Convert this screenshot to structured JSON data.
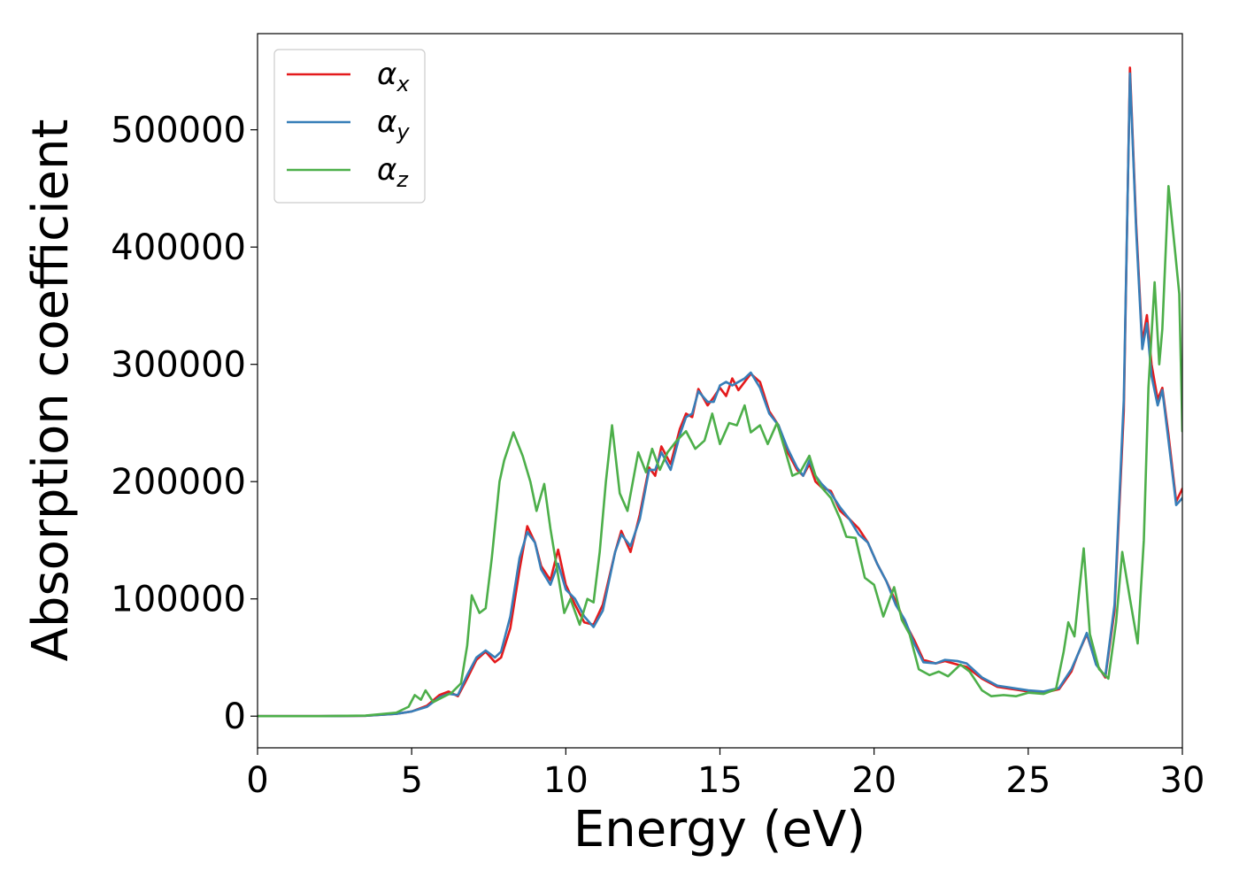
{
  "chart_data": {
    "type": "line",
    "xlabel": "Energy (eV)",
    "ylabel": "Absorption coefficient",
    "xlim": [
      0,
      30
    ],
    "ylim": [
      -27000,
      582000
    ],
    "x_ticks": [
      0,
      5,
      10,
      15,
      20,
      25,
      30
    ],
    "y_ticks": [
      0,
      100000,
      200000,
      300000,
      400000,
      500000
    ],
    "grid": false,
    "legend_position": "top-left",
    "series": [
      {
        "name": "α",
        "subscript": "x",
        "color": "#e41a1c",
        "points": [
          [
            0,
            0
          ],
          [
            2,
            0
          ],
          [
            3.5,
            300
          ],
          [
            4.5,
            2000
          ],
          [
            5,
            4000
          ],
          [
            5.5,
            9000
          ],
          [
            5.9,
            18000
          ],
          [
            6.2,
            21000
          ],
          [
            6.5,
            17000
          ],
          [
            6.8,
            32000
          ],
          [
            7.1,
            48000
          ],
          [
            7.4,
            55000
          ],
          [
            7.7,
            46000
          ],
          [
            7.9,
            50000
          ],
          [
            8.2,
            75000
          ],
          [
            8.5,
            125000
          ],
          [
            8.75,
            162000
          ],
          [
            9.0,
            148000
          ],
          [
            9.2,
            128000
          ],
          [
            9.5,
            116000
          ],
          [
            9.75,
            142000
          ],
          [
            10.0,
            112000
          ],
          [
            10.3,
            95000
          ],
          [
            10.6,
            80000
          ],
          [
            10.9,
            78000
          ],
          [
            11.2,
            95000
          ],
          [
            11.6,
            140000
          ],
          [
            11.8,
            158000
          ],
          [
            12.1,
            140000
          ],
          [
            12.4,
            172000
          ],
          [
            12.7,
            212000
          ],
          [
            12.9,
            205000
          ],
          [
            13.1,
            230000
          ],
          [
            13.4,
            215000
          ],
          [
            13.7,
            245000
          ],
          [
            13.9,
            258000
          ],
          [
            14.1,
            255000
          ],
          [
            14.3,
            279000
          ],
          [
            14.6,
            265000
          ],
          [
            14.8,
            272000
          ],
          [
            15.0,
            280000
          ],
          [
            15.2,
            273000
          ],
          [
            15.4,
            288000
          ],
          [
            15.6,
            278000
          ],
          [
            15.8,
            285000
          ],
          [
            16.0,
            292000
          ],
          [
            16.3,
            285000
          ],
          [
            16.6,
            260000
          ],
          [
            16.9,
            248000
          ],
          [
            17.2,
            225000
          ],
          [
            17.5,
            210000
          ],
          [
            17.7,
            205000
          ],
          [
            17.9,
            215000
          ],
          [
            18.1,
            200000
          ],
          [
            18.3,
            195000
          ],
          [
            18.6,
            192000
          ],
          [
            18.9,
            175000
          ],
          [
            19.2,
            168000
          ],
          [
            19.5,
            160000
          ],
          [
            19.8,
            148000
          ],
          [
            20.1,
            130000
          ],
          [
            20.4,
            115000
          ],
          [
            20.7,
            98000
          ],
          [
            21.0,
            80000
          ],
          [
            21.3,
            65000
          ],
          [
            21.6,
            48000
          ],
          [
            22.0,
            45000
          ],
          [
            22.3,
            47000
          ],
          [
            22.7,
            44000
          ],
          [
            23.0,
            42000
          ],
          [
            23.5,
            32000
          ],
          [
            24.0,
            25000
          ],
          [
            24.5,
            23000
          ],
          [
            25.0,
            21000
          ],
          [
            25.5,
            20000
          ],
          [
            26.0,
            23000
          ],
          [
            26.4,
            38000
          ],
          [
            26.6,
            52000
          ],
          [
            26.9,
            70000
          ],
          [
            27.2,
            45000
          ],
          [
            27.5,
            33000
          ],
          [
            27.8,
            90000
          ],
          [
            28.1,
            260000
          ],
          [
            28.3,
            553000
          ],
          [
            28.5,
            420000
          ],
          [
            28.7,
            318000
          ],
          [
            28.85,
            342000
          ],
          [
            29.0,
            300000
          ],
          [
            29.2,
            270000
          ],
          [
            29.35,
            280000
          ],
          [
            29.55,
            240000
          ],
          [
            29.8,
            183000
          ],
          [
            30.0,
            194000
          ]
        ]
      },
      {
        "name": "α",
        "subscript": "y",
        "color": "#377eb8",
        "points": [
          [
            0,
            0
          ],
          [
            2,
            0
          ],
          [
            3.5,
            300
          ],
          [
            4.5,
            2000
          ],
          [
            5,
            4000
          ],
          [
            5.5,
            8000
          ],
          [
            5.9,
            16000
          ],
          [
            6.2,
            19000
          ],
          [
            6.5,
            18000
          ],
          [
            6.8,
            35000
          ],
          [
            7.1,
            50000
          ],
          [
            7.4,
            56000
          ],
          [
            7.7,
            50000
          ],
          [
            7.9,
            55000
          ],
          [
            8.2,
            85000
          ],
          [
            8.5,
            135000
          ],
          [
            8.75,
            157000
          ],
          [
            9.0,
            148000
          ],
          [
            9.2,
            125000
          ],
          [
            9.5,
            112000
          ],
          [
            9.75,
            130000
          ],
          [
            10.0,
            108000
          ],
          [
            10.3,
            100000
          ],
          [
            10.6,
            85000
          ],
          [
            10.9,
            76000
          ],
          [
            11.2,
            90000
          ],
          [
            11.6,
            140000
          ],
          [
            11.8,
            155000
          ],
          [
            12.1,
            145000
          ],
          [
            12.4,
            168000
          ],
          [
            12.7,
            210000
          ],
          [
            12.9,
            210000
          ],
          [
            13.1,
            225000
          ],
          [
            13.4,
            210000
          ],
          [
            13.7,
            240000
          ],
          [
            13.9,
            255000
          ],
          [
            14.1,
            258000
          ],
          [
            14.3,
            277000
          ],
          [
            14.6,
            268000
          ],
          [
            14.8,
            268000
          ],
          [
            15.0,
            282000
          ],
          [
            15.2,
            285000
          ],
          [
            15.4,
            282000
          ],
          [
            15.6,
            285000
          ],
          [
            15.8,
            288000
          ],
          [
            16.0,
            293000
          ],
          [
            16.3,
            280000
          ],
          [
            16.6,
            258000
          ],
          [
            16.9,
            248000
          ],
          [
            17.2,
            228000
          ],
          [
            17.5,
            212000
          ],
          [
            17.7,
            205000
          ],
          [
            17.9,
            218000
          ],
          [
            18.1,
            205000
          ],
          [
            18.3,
            198000
          ],
          [
            18.6,
            190000
          ],
          [
            18.9,
            178000
          ],
          [
            19.2,
            168000
          ],
          [
            19.5,
            155000
          ],
          [
            19.8,
            148000
          ],
          [
            20.1,
            130000
          ],
          [
            20.4,
            115000
          ],
          [
            20.7,
            95000
          ],
          [
            21.0,
            82000
          ],
          [
            21.3,
            62000
          ],
          [
            21.6,
            46000
          ],
          [
            22.0,
            45000
          ],
          [
            22.3,
            48000
          ],
          [
            22.7,
            47000
          ],
          [
            23.0,
            45000
          ],
          [
            23.5,
            33000
          ],
          [
            24.0,
            26000
          ],
          [
            24.5,
            24000
          ],
          [
            25.0,
            22000
          ],
          [
            25.5,
            21000
          ],
          [
            26.0,
            24000
          ],
          [
            26.4,
            40000
          ],
          [
            26.6,
            52000
          ],
          [
            26.9,
            71000
          ],
          [
            27.2,
            44000
          ],
          [
            27.5,
            34000
          ],
          [
            27.8,
            95000
          ],
          [
            28.1,
            270000
          ],
          [
            28.3,
            548000
          ],
          [
            28.5,
            415000
          ],
          [
            28.7,
            313000
          ],
          [
            28.85,
            335000
          ],
          [
            29.0,
            290000
          ],
          [
            29.2,
            265000
          ],
          [
            29.35,
            278000
          ],
          [
            29.55,
            235000
          ],
          [
            29.8,
            180000
          ],
          [
            30.0,
            186000
          ]
        ]
      },
      {
        "name": "α",
        "subscript": "z",
        "color": "#4daf4a",
        "points": [
          [
            0,
            0
          ],
          [
            2,
            0
          ],
          [
            3.5,
            500
          ],
          [
            4.5,
            3000
          ],
          [
            4.9,
            8000
          ],
          [
            5.1,
            18000
          ],
          [
            5.3,
            14000
          ],
          [
            5.45,
            22000
          ],
          [
            5.7,
            12000
          ],
          [
            6.0,
            16000
          ],
          [
            6.3,
            20000
          ],
          [
            6.6,
            28000
          ],
          [
            6.8,
            60000
          ],
          [
            6.95,
            103000
          ],
          [
            7.2,
            88000
          ],
          [
            7.4,
            92000
          ],
          [
            7.6,
            135000
          ],
          [
            7.85,
            200000
          ],
          [
            8.0,
            218000
          ],
          [
            8.3,
            242000
          ],
          [
            8.6,
            222000
          ],
          [
            8.85,
            200000
          ],
          [
            9.05,
            175000
          ],
          [
            9.3,
            198000
          ],
          [
            9.5,
            160000
          ],
          [
            9.75,
            120000
          ],
          [
            9.95,
            88000
          ],
          [
            10.15,
            100000
          ],
          [
            10.45,
            78000
          ],
          [
            10.7,
            100000
          ],
          [
            10.9,
            97000
          ],
          [
            11.1,
            140000
          ],
          [
            11.3,
            200000
          ],
          [
            11.5,
            248000
          ],
          [
            11.75,
            190000
          ],
          [
            12.0,
            175000
          ],
          [
            12.35,
            225000
          ],
          [
            12.6,
            208000
          ],
          [
            12.8,
            228000
          ],
          [
            13.05,
            210000
          ],
          [
            13.3,
            225000
          ],
          [
            13.6,
            235000
          ],
          [
            13.9,
            243000
          ],
          [
            14.2,
            228000
          ],
          [
            14.5,
            235000
          ],
          [
            14.75,
            258000
          ],
          [
            15.0,
            232000
          ],
          [
            15.3,
            250000
          ],
          [
            15.55,
            248000
          ],
          [
            15.8,
            265000
          ],
          [
            16.0,
            242000
          ],
          [
            16.3,
            248000
          ],
          [
            16.55,
            232000
          ],
          [
            16.85,
            250000
          ],
          [
            17.1,
            228000
          ],
          [
            17.35,
            205000
          ],
          [
            17.6,
            208000
          ],
          [
            17.9,
            222000
          ],
          [
            18.1,
            205000
          ],
          [
            18.3,
            195000
          ],
          [
            18.6,
            186000
          ],
          [
            18.9,
            168000
          ],
          [
            19.1,
            153000
          ],
          [
            19.4,
            152000
          ],
          [
            19.7,
            118000
          ],
          [
            20.0,
            112000
          ],
          [
            20.3,
            85000
          ],
          [
            20.65,
            110000
          ],
          [
            20.9,
            82000
          ],
          [
            21.15,
            70000
          ],
          [
            21.45,
            40000
          ],
          [
            21.8,
            35000
          ],
          [
            22.1,
            38000
          ],
          [
            22.4,
            34000
          ],
          [
            22.8,
            44000
          ],
          [
            23.1,
            38000
          ],
          [
            23.5,
            22000
          ],
          [
            23.8,
            17000
          ],
          [
            24.2,
            18000
          ],
          [
            24.6,
            17000
          ],
          [
            25.0,
            20000
          ],
          [
            25.5,
            19000
          ],
          [
            25.9,
            23000
          ],
          [
            26.15,
            55000
          ],
          [
            26.3,
            80000
          ],
          [
            26.5,
            68000
          ],
          [
            26.8,
            143000
          ],
          [
            27.0,
            70000
          ],
          [
            27.3,
            40000
          ],
          [
            27.6,
            32000
          ],
          [
            27.85,
            80000
          ],
          [
            28.05,
            140000
          ],
          [
            28.3,
            100000
          ],
          [
            28.55,
            62000
          ],
          [
            28.75,
            150000
          ],
          [
            28.9,
            280000
          ],
          [
            29.1,
            370000
          ],
          [
            29.25,
            300000
          ],
          [
            29.35,
            330000
          ],
          [
            29.55,
            452000
          ],
          [
            29.75,
            400000
          ],
          [
            29.9,
            360000
          ],
          [
            30.0,
            243000
          ]
        ]
      }
    ]
  }
}
